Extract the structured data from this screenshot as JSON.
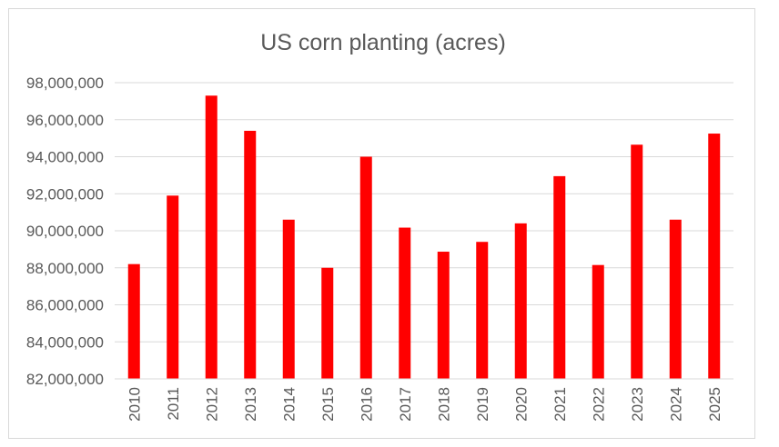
{
  "chart_data": {
    "type": "bar",
    "title": "US corn planting (acres)",
    "xlabel": "",
    "ylabel": "",
    "categories": [
      "2010",
      "2011",
      "2012",
      "2013",
      "2014",
      "2015",
      "2016",
      "2017",
      "2018",
      "2019",
      "2020",
      "2021",
      "2022",
      "2023",
      "2024",
      "2025"
    ],
    "values": [
      88200000,
      91900000,
      97300000,
      95400000,
      90600000,
      88000000,
      94000000,
      90170000,
      88870000,
      89400000,
      90400000,
      92950000,
      88150000,
      94650000,
      90600000,
      95250000
    ],
    "ylim": [
      82000000,
      98000000
    ],
    "yticks": [
      "82,000,000",
      "84,000,000",
      "86,000,000",
      "88,000,000",
      "90,000,000",
      "92,000,000",
      "94,000,000",
      "96,000,000",
      "98,000,000"
    ],
    "grid": true,
    "legend": "none",
    "colors": {
      "bar": "#ff0000",
      "grid": "#d9d9d9",
      "text": "#595959"
    }
  }
}
